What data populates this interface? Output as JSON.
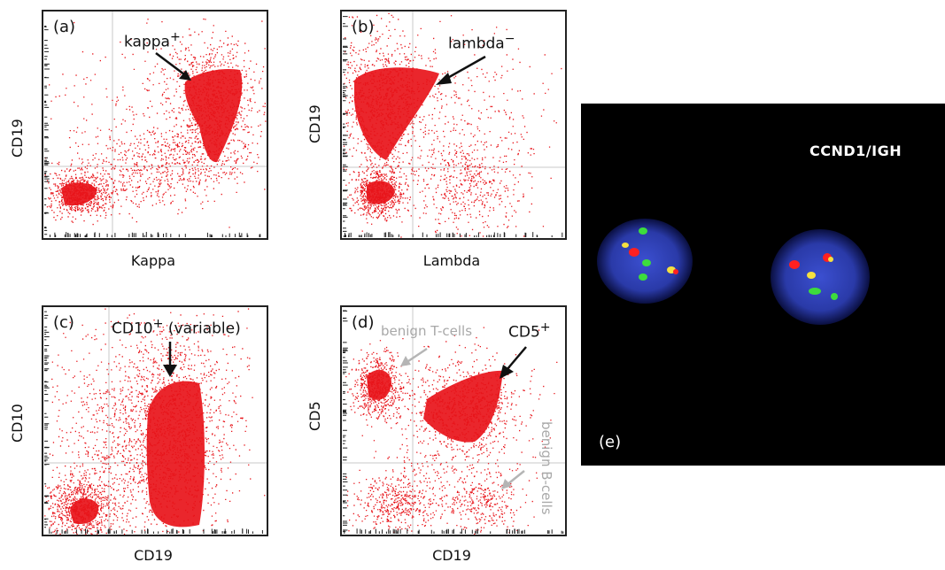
{
  "panels": [
    {
      "tag": "(a)",
      "xlabel": "Kappa",
      "ylabel": "CD19",
      "annotation": "kappa",
      "annotation_sup": "+"
    },
    {
      "tag": "(b)",
      "xlabel": "Lambda",
      "ylabel": "CD19",
      "annotation": "lambda",
      "annotation_sup": "−"
    },
    {
      "tag": "(c)",
      "xlabel": "CD19",
      "ylabel": "CD10",
      "annotation": "CD10",
      "annotation_sup": "+",
      "annotation_suffix": " (variable)"
    },
    {
      "tag": "(d)",
      "xlabel": "CD19",
      "ylabel": "CD5",
      "annotation": "CD5",
      "annotation_sup": "+",
      "grey_labels": {
        "t_cells": "benign T-cells",
        "b_cells": "benign B-cells"
      }
    }
  ],
  "fish": {
    "title": "CCND1/IGH",
    "tag": "(e)"
  },
  "colors": {
    "dots": "#e8141a",
    "grid": "#c8c8c8",
    "nucleus": "#2a3fb8",
    "red_signal": "#ff2020",
    "green_signal": "#3ddc3d",
    "yellow_signal": "#f5e040"
  }
}
